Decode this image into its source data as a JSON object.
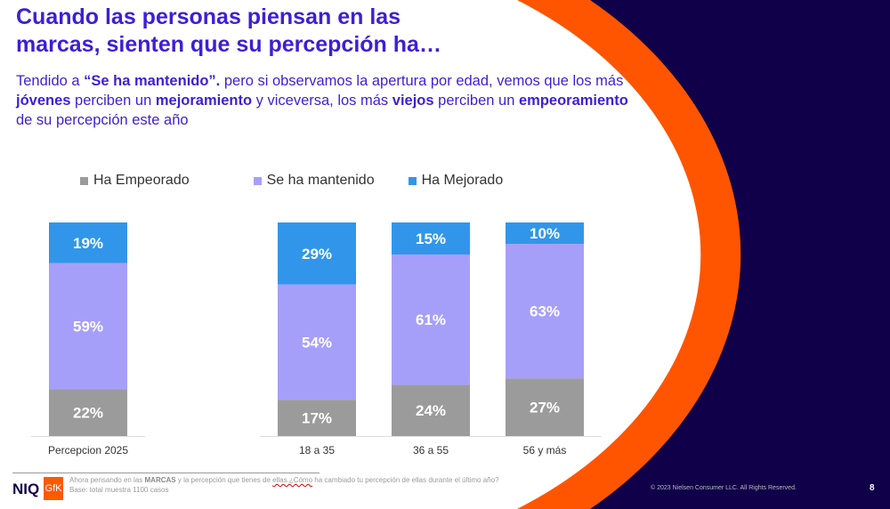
{
  "title_lines": [
    "Cuando las personas piensan en las",
    "marcas, sienten que su percepción ha…"
  ],
  "subtitle": {
    "p1": "Tendido a ",
    "b1": "“Se ha mantenido”.",
    "p2": " pero si observamos la apertura por edad, vemos que los más ",
    "b2": "jóvenes",
    "p3": " perciben un ",
    "b3": "mejoramiento",
    "p4": " y viceversa, los más ",
    "b4": "viejos",
    "p5": " perciben un ",
    "b5": "empeoramiento",
    "p6": " de su percepción este año"
  },
  "colors": {
    "empeorado": "#9b9b9b",
    "mantenido": "#a69ffa",
    "mejorado": "#3196ea",
    "navy": "#10004a",
    "orange": "#ff5500"
  },
  "chart_data": {
    "type": "bar",
    "stacked": true,
    "categories": [
      "Percepcion 2025",
      "18 a 35",
      "36 a 55",
      "56 y más"
    ],
    "series": [
      {
        "name": "Ha Empeorado",
        "values": [
          22,
          17,
          24,
          27
        ],
        "labels": [
          "22%",
          "17%",
          "24%",
          "27%"
        ]
      },
      {
        "name": "Se ha mantenido",
        "values": [
          59,
          54,
          61,
          63
        ],
        "labels": [
          "59%",
          "54%",
          "61%",
          "63%"
        ]
      },
      {
        "name": "Ha Mejorado",
        "values": [
          19,
          29,
          15,
          10
        ],
        "labels": [
          "19%",
          "29%",
          "15%",
          "10%"
        ]
      }
    ],
    "ylim": [
      0,
      100
    ],
    "legend": "top"
  },
  "footer": {
    "q1": "Ahora pensando en las ",
    "q_bold": "MARCAS",
    "q2": " y la percepción que tienes de ",
    "q_wavy": "ellas.¿Cómo",
    "q3": " ha cambiado tu percepción de ellas durante el último año?",
    "base": "Base: total muestra 1100 casos",
    "copyright": "© 2023 Nielsen Consumer LLC. All Rights Reserved.",
    "page": "8",
    "logo_niq": "NIQ",
    "logo_gfk": "GfK"
  }
}
